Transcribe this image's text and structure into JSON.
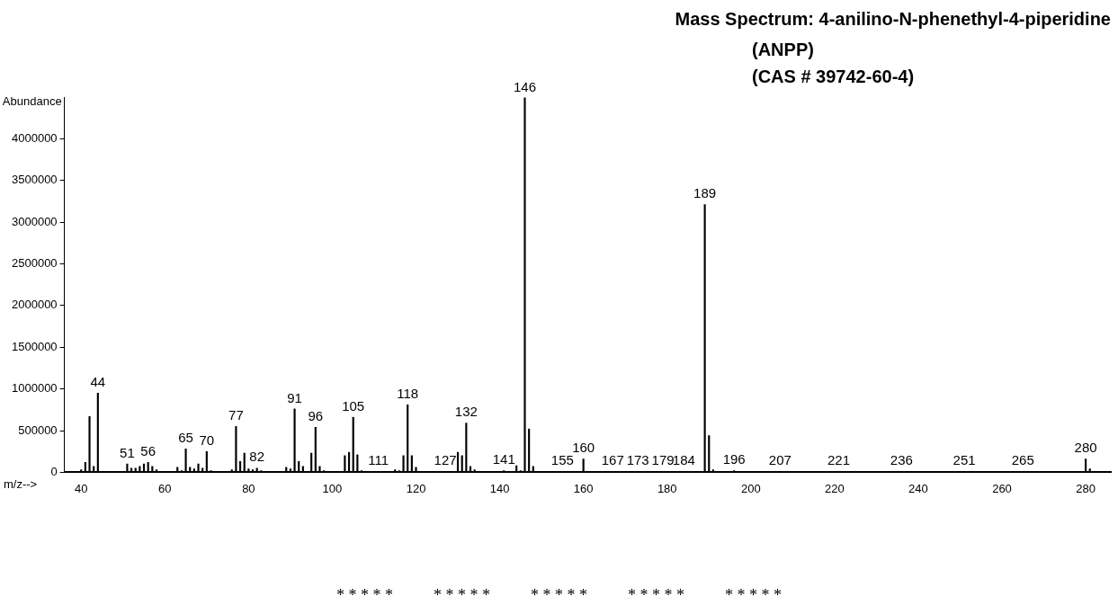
{
  "chart_data": {
    "type": "bar",
    "title": "Mass Spectrum: 4-anilino-N-phenethyl-4-piperidine",
    "subtitle": "(ANPP)\n(CAS # 39742-60-4)",
    "xlabel": "m/z-->",
    "ylabel": "Abundance",
    "color": "#000000",
    "x": [
      40,
      41,
      42,
      43,
      44,
      51,
      52,
      53,
      54,
      55,
      56,
      57,
      58,
      63,
      64,
      65,
      66,
      67,
      68,
      69,
      70,
      71,
      76,
      77,
      78,
      79,
      80,
      81,
      82,
      83,
      89,
      90,
      91,
      92,
      93,
      95,
      96,
      97,
      98,
      103,
      104,
      105,
      106,
      107,
      111,
      115,
      116,
      117,
      118,
      119,
      120,
      127,
      130,
      131,
      132,
      133,
      134,
      141,
      144,
      145,
      146,
      147,
      148,
      155,
      158,
      160,
      167,
      173,
      179,
      184,
      189,
      190,
      191,
      196,
      207,
      221,
      236,
      251,
      265,
      280,
      281
    ],
    "values": [
      30000,
      120000,
      670000,
      70000,
      950000,
      100000,
      50000,
      50000,
      70000,
      100000,
      120000,
      70000,
      30000,
      60000,
      20000,
      280000,
      60000,
      40000,
      100000,
      50000,
      250000,
      20000,
      30000,
      550000,
      130000,
      230000,
      40000,
      30000,
      50000,
      20000,
      60000,
      40000,
      760000,
      130000,
      70000,
      230000,
      540000,
      70000,
      20000,
      200000,
      240000,
      660000,
      210000,
      20000,
      10000,
      30000,
      20000,
      200000,
      810000,
      200000,
      60000,
      10000,
      240000,
      200000,
      590000,
      70000,
      30000,
      20000,
      80000,
      20000,
      4490000,
      520000,
      70000,
      10000,
      10000,
      160000,
      10000,
      10000,
      10000,
      10000,
      3210000,
      440000,
      30000,
      20000,
      10000,
      10000,
      10000,
      10000,
      10000,
      160000,
      40000
    ],
    "xlim": [
      36,
      286
    ],
    "xticks": [
      40,
      60,
      80,
      100,
      120,
      140,
      160,
      180,
      200,
      220,
      240,
      260,
      280
    ],
    "ylim": [
      0,
      4500000
    ],
    "yticks": [
      0,
      500000,
      1000000,
      1500000,
      2000000,
      2500000,
      3000000,
      3500000,
      4000000
    ],
    "grid": false,
    "legend": false,
    "annotations": [
      {
        "text": "44",
        "x": 44,
        "y": 950000
      },
      {
        "text": "51",
        "x": 51,
        "y": 100000
      },
      {
        "text": "56",
        "x": 56,
        "y": 120000
      },
      {
        "text": "65",
        "x": 65,
        "y": 280000
      },
      {
        "text": "70",
        "x": 70,
        "y": 250000
      },
      {
        "text": "77",
        "x": 77,
        "y": 550000
      },
      {
        "text": "82",
        "x": 82,
        "y": 50000
      },
      {
        "text": "91",
        "x": 91,
        "y": 760000
      },
      {
        "text": "96",
        "x": 96,
        "y": 540000
      },
      {
        "text": "105",
        "x": 105,
        "y": 660000
      },
      {
        "text": "111",
        "x": 111,
        "y": 10000
      },
      {
        "text": "118",
        "x": 118,
        "y": 810000
      },
      {
        "text": "127",
        "x": 127,
        "y": 10000
      },
      {
        "text": "132",
        "x": 132,
        "y": 590000
      },
      {
        "text": "141",
        "x": 141,
        "y": 20000
      },
      {
        "text": "146",
        "x": 146,
        "y": 4490000
      },
      {
        "text": "155",
        "x": 155,
        "y": 10000
      },
      {
        "text": "160",
        "x": 160,
        "y": 160000
      },
      {
        "text": "167",
        "x": 167,
        "y": 10000
      },
      {
        "text": "173",
        "x": 173,
        "y": 10000
      },
      {
        "text": "179",
        "x": 179,
        "y": 10000
      },
      {
        "text": "184",
        "x": 184,
        "y": 10000
      },
      {
        "text": "189",
        "x": 189,
        "y": 3210000
      },
      {
        "text": "196",
        "x": 196,
        "y": 20000
      },
      {
        "text": "207",
        "x": 207,
        "y": 10000
      },
      {
        "text": "221",
        "x": 221,
        "y": 10000
      },
      {
        "text": "236",
        "x": 236,
        "y": 10000
      },
      {
        "text": "251",
        "x": 251,
        "y": 10000
      },
      {
        "text": "265",
        "x": 265,
        "y": 10000
      },
      {
        "text": "280",
        "x": 280,
        "y": 160000
      },
      "* * * * *          * * * * *          * * * * *          * * * * *          * * * * *"
    ]
  }
}
